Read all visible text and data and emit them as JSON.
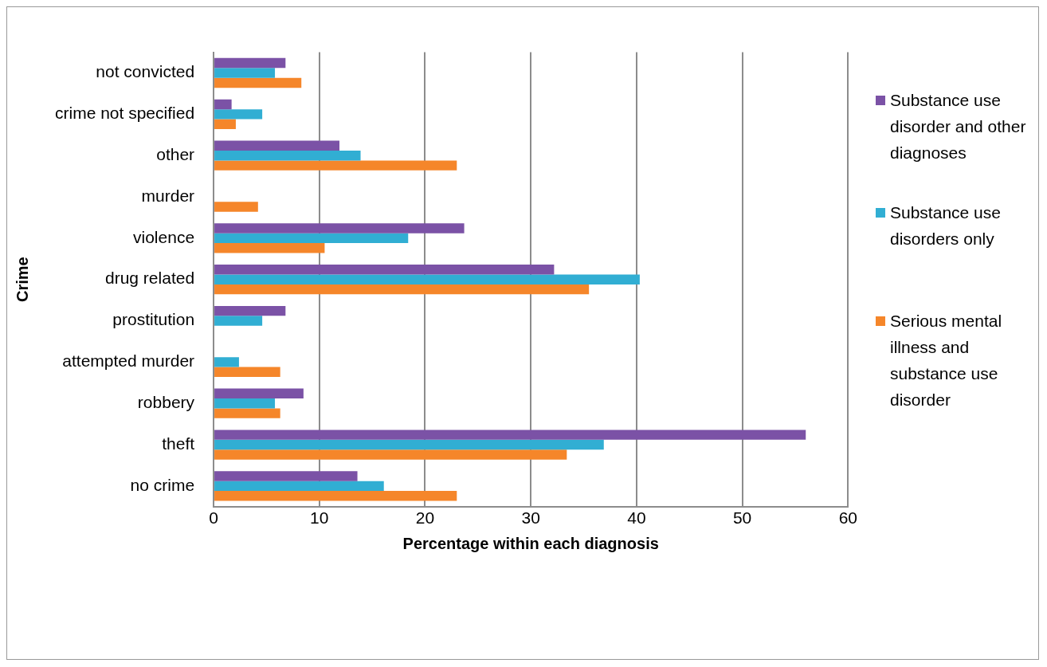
{
  "chart_data": {
    "type": "bar",
    "orientation": "horizontal",
    "xlabel": "Percentage within each diagnosis",
    "ylabel": "Crime",
    "categories": [
      "not convicted",
      "crime not specified",
      "other",
      "murder",
      "violence",
      "drug related",
      "prostitution",
      "attempted murder",
      "robbery",
      "theft",
      "no crime"
    ],
    "series": [
      {
        "name": "Substance use disorder and other diagnoses",
        "color": "#7b52a6",
        "values": [
          6.8,
          1.7,
          11.9,
          null,
          23.7,
          32.2,
          6.8,
          null,
          8.5,
          56.0,
          13.6
        ]
      },
      {
        "name": "Substance use disorders only",
        "color": "#31aed3",
        "values": [
          5.8,
          4.6,
          13.9,
          null,
          18.4,
          40.3,
          4.6,
          2.4,
          5.8,
          36.9,
          16.1
        ]
      },
      {
        "name": "Serious mental illness and substance use disorder",
        "color": "#f5862a",
        "values": [
          8.3,
          2.1,
          23.0,
          4.2,
          10.5,
          35.5,
          null,
          6.3,
          6.3,
          33.4,
          23.0
        ]
      }
    ],
    "xlim": [
      0,
      60
    ],
    "xticks": [
      0,
      10,
      20,
      30,
      40,
      50,
      60
    ],
    "grid": "x",
    "legend": "right"
  }
}
